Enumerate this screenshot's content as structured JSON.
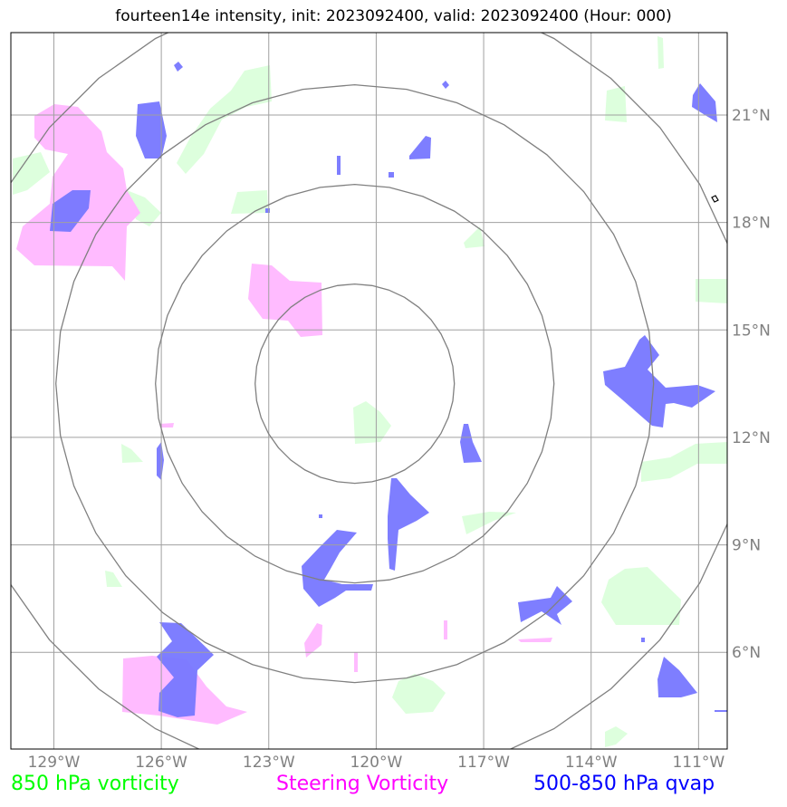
{
  "title": "fourteen14e intensity, init: 2023092400, valid: 2023092400 (Hour: 000)",
  "map": {
    "lon_range": [
      -130.2,
      -110.2
    ],
    "lat_range": [
      3.3,
      23.3
    ],
    "lon_ticks": [
      {
        "value": -129,
        "label": "129°W"
      },
      {
        "value": -126,
        "label": "126°W"
      },
      {
        "value": -123,
        "label": "123°W"
      },
      {
        "value": -120,
        "label": "120°W"
      },
      {
        "value": -117,
        "label": "117°W"
      },
      {
        "value": -114,
        "label": "114°W"
      },
      {
        "value": -111,
        "label": "111°W"
      }
    ],
    "lat_ticks": [
      {
        "value": 21,
        "label": "21°N"
      },
      {
        "value": 18,
        "label": "18°N"
      },
      {
        "value": 15,
        "label": "15°N"
      },
      {
        "value": 12,
        "label": "12°N"
      },
      {
        "value": 9,
        "label": "9°N"
      },
      {
        "value": 6,
        "label": "6°N"
      }
    ],
    "range_rings_center": {
      "lon": -120.6,
      "lat": 13.5
    },
    "range_ring_count": 4,
    "gridlines": true
  },
  "legend": [
    {
      "label": "850 hPa vorticity",
      "color": "#00ff00"
    },
    {
      "label": "Steering Vorticity",
      "color": "#ff00ff"
    },
    {
      "label": "500-850 hPa qvap",
      "color": "#0000ff"
    }
  ],
  "colors": {
    "vorticity_fill": "#ddffdd",
    "steering_fill": "#ffbbff",
    "qvap_fill": "#7777ff",
    "grid": "#a0a0a0",
    "rings": "#808080"
  }
}
